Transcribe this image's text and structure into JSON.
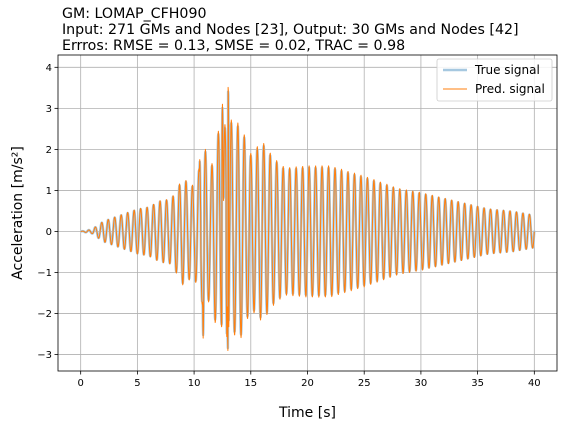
{
  "title_lines": [
    "GM: LOMAP_CFH090",
    "Input: 271 GMs and Nodes [23], Output: 30 GMs and Nodes [42]",
    "Errros: RMSE = 0.13, SMSE = 0.02, TRAC = 0.98"
  ],
  "chart_data": {
    "type": "line",
    "title": "GM: LOMAP_CFH090",
    "xlabel": "Time [s]",
    "ylabel": "Acceleration [m/s²]",
    "xlim": [
      -2,
      42
    ],
    "ylim": [
      -3.4,
      4.3
    ],
    "xticks": [
      0,
      5,
      10,
      15,
      20,
      25,
      30,
      35,
      40
    ],
    "yticks": [
      -3,
      -2,
      -1,
      0,
      1,
      2,
      3,
      4
    ],
    "xtick_labels": [
      "0",
      "5",
      "10",
      "15",
      "20",
      "25",
      "30",
      "35",
      "40"
    ],
    "ytick_labels": [
      "−3",
      "−2",
      "−1",
      "0",
      "1",
      "2",
      "3",
      "4"
    ],
    "grid": true,
    "legend_position": "top-right",
    "oscillation_frequency_hz": 1.75,
    "envelope": {
      "t": [
        0,
        1,
        1.5,
        2,
        3,
        4,
        5,
        6,
        7,
        8,
        9,
        10,
        10.5,
        11,
        11.5,
        12,
        12.5,
        13,
        13.5,
        14,
        15,
        16,
        17,
        18,
        20,
        22,
        25,
        28,
        30,
        33,
        36,
        38,
        40
      ],
      "amplitude": [
        0.0,
        0.05,
        0.15,
        0.25,
        0.35,
        0.45,
        0.55,
        0.6,
        0.75,
        0.8,
        1.3,
        1.1,
        1.6,
        2.0,
        1.5,
        2.5,
        2.3,
        3.0,
        2.5,
        2.7,
        1.9,
        2.2,
        1.8,
        1.55,
        1.6,
        1.6,
        1.35,
        1.05,
        0.95,
        0.75,
        0.55,
        0.5,
        0.4
      ]
    },
    "extremes": [
      {
        "t": 10.5,
        "value": 1.75
      },
      {
        "t": 10.8,
        "value": -2.6
      },
      {
        "t": 12.5,
        "value": 3.1
      },
      {
        "t": 12.9,
        "value": -3.0
      },
      {
        "t": 13.0,
        "value": 3.9
      }
    ],
    "series": [
      {
        "name": "True signal",
        "color": "#a6c8e0",
        "line_width": 2.5
      },
      {
        "name": "Pred. signal",
        "color": "#ff7f0e",
        "line_width": 1.0
      }
    ]
  }
}
